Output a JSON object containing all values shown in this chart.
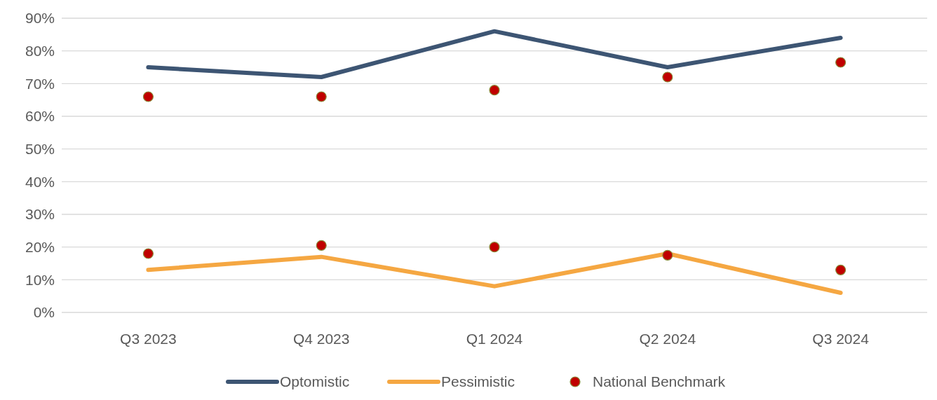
{
  "chart_data": {
    "type": "line",
    "categories": [
      "Q3 2023",
      "Q4 2023",
      "Q1 2024",
      "Q2 2024",
      "Q3 2024"
    ],
    "series": [
      {
        "name": "Optomistic",
        "color": "#3d5573",
        "values": [
          75,
          72,
          86,
          75,
          84
        ]
      },
      {
        "name": "Pessimistic",
        "color": "#f5a742",
        "values": [
          13,
          17,
          8,
          18,
          6
        ]
      },
      {
        "name": "National Benchmark",
        "type": "scatter",
        "marker": "circle",
        "color": "#c00000",
        "values": [
          66,
          66,
          68,
          72,
          76.5
        ]
      },
      {
        "type": "scatter",
        "marker": "circle",
        "color": "#c00000",
        "values": [
          18,
          20.5,
          20,
          17.5,
          13
        ]
      }
    ],
    "ylim": [
      0,
      90
    ],
    "yticks": [
      {
        "value": 0,
        "label": "0%"
      },
      {
        "value": 10,
        "label": "10%"
      },
      {
        "value": 20,
        "label": "20%"
      },
      {
        "value": 30,
        "label": "30%"
      },
      {
        "value": 40,
        "label": "40%"
      },
      {
        "value": 50,
        "label": "50%"
      },
      {
        "value": 60,
        "label": "60%"
      },
      {
        "value": 70,
        "label": "70%"
      },
      {
        "value": 80,
        "label": "80%"
      },
      {
        "value": 90,
        "label": "90%"
      }
    ],
    "grid": "y",
    "legend": "bottom"
  }
}
